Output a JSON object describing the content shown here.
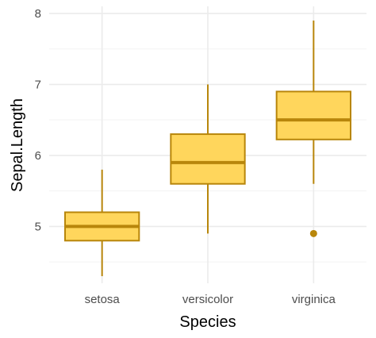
{
  "chart_data": {
    "type": "box",
    "xlabel": "Species",
    "ylabel": "Sepal.Length",
    "categories": [
      "setosa",
      "versicolor",
      "virginica"
    ],
    "ylim": [
      4.2,
      8.1
    ],
    "yticks": [
      5,
      6,
      7,
      8
    ],
    "yticks_minor": [
      4.5,
      5.5,
      6.5,
      7.5
    ],
    "grid": true,
    "boxes": [
      {
        "category": "setosa",
        "lower_whisker": 4.3,
        "q1": 4.8,
        "median": 5.0,
        "q3": 5.2,
        "upper_whisker": 5.8,
        "outliers": []
      },
      {
        "category": "versicolor",
        "lower_whisker": 4.9,
        "q1": 5.6,
        "median": 5.9,
        "q3": 6.3,
        "upper_whisker": 7.0,
        "outliers": []
      },
      {
        "category": "virginica",
        "lower_whisker": 5.6,
        "q1": 6.225,
        "median": 6.5,
        "q3": 6.9,
        "upper_whisker": 7.9,
        "outliers": [
          4.9
        ]
      }
    ],
    "colors": {
      "fill": "#FFD65C",
      "outline": "#B8860B",
      "grid_major": "#EBEBEB",
      "grid_minor": "#F3F3F3"
    }
  }
}
